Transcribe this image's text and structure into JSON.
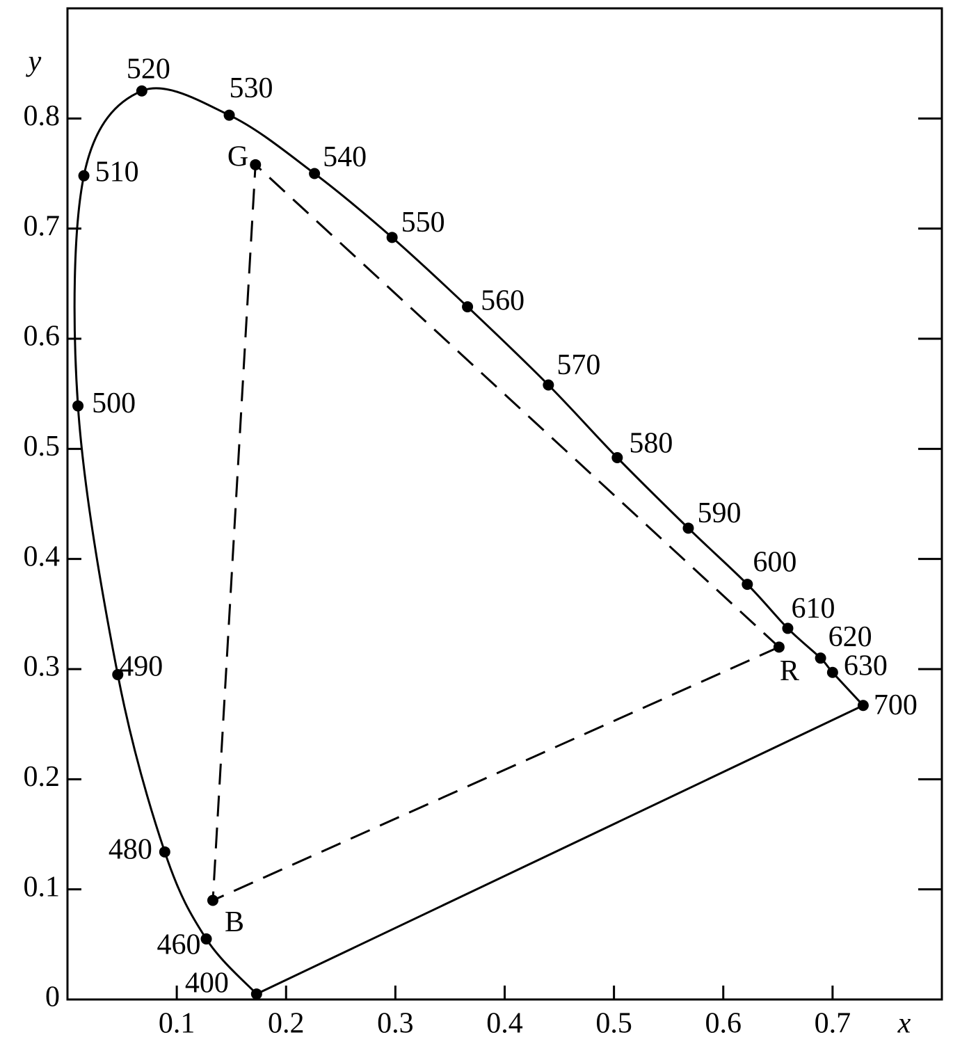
{
  "chart_data": {
    "type": "chromaticity",
    "x_label": "x",
    "y_label": "y",
    "xlim": [
      0,
      0.8
    ],
    "ylim": [
      0,
      0.9
    ],
    "xticks": [
      0.1,
      0.2,
      0.3,
      0.4,
      0.5,
      0.6,
      0.7
    ],
    "yticks": [
      0,
      0.1,
      0.2,
      0.3,
      0.4,
      0.5,
      0.6,
      0.7,
      0.8
    ],
    "color": "#000000",
    "locus": {
      "labels": [
        400,
        460,
        480,
        490,
        500,
        510,
        520,
        530,
        540,
        550,
        560,
        570,
        580,
        590,
        600,
        610,
        620,
        630,
        700
      ],
      "x": [
        0.173,
        0.127,
        0.089,
        0.046,
        0.0096,
        0.015,
        0.068,
        0.148,
        0.226,
        0.297,
        0.366,
        0.44,
        0.503,
        0.568,
        0.622,
        0.659,
        0.689,
        0.7,
        0.728
      ],
      "y": [
        0.005,
        0.055,
        0.134,
        0.295,
        0.539,
        0.748,
        0.825,
        0.803,
        0.75,
        0.692,
        0.629,
        0.558,
        0.492,
        0.428,
        0.377,
        0.337,
        0.31,
        0.297,
        0.267
      ]
    },
    "primaries": {
      "labels": [
        "R",
        "G",
        "B"
      ],
      "x": [
        0.651,
        0.172,
        0.133
      ],
      "y": [
        0.32,
        0.758,
        0.09
      ]
    }
  }
}
